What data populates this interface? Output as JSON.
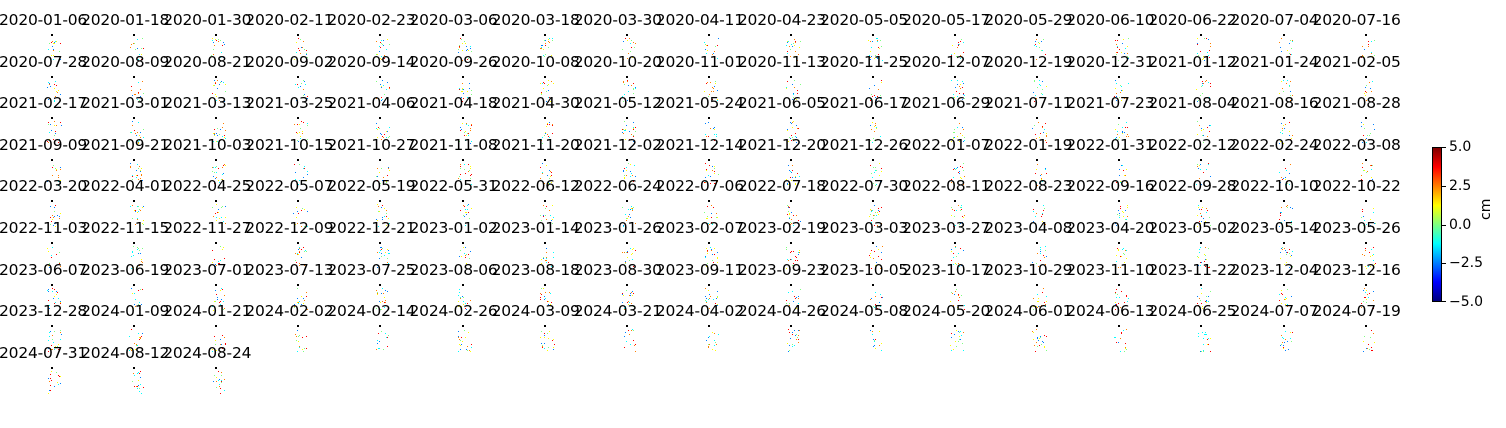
{
  "chart_data": {
    "type": "heatmap",
    "title": "",
    "panels": [
      "2020-01-06",
      "2020-01-18",
      "2020-01-30",
      "2020-02-11",
      "2020-02-23",
      "2020-03-06",
      "2020-03-18",
      "2020-03-30",
      "2020-04-11",
      "2020-04-23",
      "2020-05-05",
      "2020-05-17",
      "2020-05-29",
      "2020-06-10",
      "2020-06-22",
      "2020-07-04",
      "2020-07-16",
      "2020-07-28",
      "2020-08-09",
      "2020-08-21",
      "2020-09-02",
      "2020-09-14",
      "2020-09-26",
      "2020-10-08",
      "2020-10-20",
      "2020-11-01",
      "2020-11-13",
      "2020-11-25",
      "2020-12-07",
      "2020-12-19",
      "2020-12-31",
      "2021-01-12",
      "2021-01-24",
      "2021-02-05",
      "2021-02-17",
      "2021-03-01",
      "2021-03-13",
      "2021-03-25",
      "2021-04-06",
      "2021-04-18",
      "2021-04-30",
      "2021-05-12",
      "2021-05-24",
      "2021-06-05",
      "2021-06-17",
      "2021-06-29",
      "2021-07-11",
      "2021-07-23",
      "2021-08-04",
      "2021-08-16",
      "2021-08-28",
      "2021-09-09",
      "2021-09-21",
      "2021-10-03",
      "2021-10-15",
      "2021-10-27",
      "2021-11-08",
      "2021-11-20",
      "2021-12-02",
      "2021-12-14",
      "2021-12-20",
      "2021-12-26",
      "2022-01-07",
      "2022-01-19",
      "2022-01-31",
      "2022-02-12",
      "2022-02-24",
      "2022-03-08",
      "2022-03-20",
      "2022-04-01",
      "2022-04-25",
      "2022-05-07",
      "2022-05-19",
      "2022-05-31",
      "2022-06-12",
      "2022-06-24",
      "2022-07-06",
      "2022-07-18",
      "2022-07-30",
      "2022-08-11",
      "2022-08-23",
      "2022-09-16",
      "2022-09-28",
      "2022-10-10",
      "2022-10-22",
      "2022-11-03",
      "2022-11-15",
      "2022-11-27",
      "2022-12-09",
      "2022-12-21",
      "2023-01-02",
      "2023-01-14",
      "2023-01-26",
      "2023-02-07",
      "2023-02-19",
      "2023-03-03",
      "2023-03-27",
      "2023-04-08",
      "2023-04-20",
      "2023-05-02",
      "2023-05-14",
      "2023-05-26",
      "2023-06-07",
      "2023-06-19",
      "2023-07-01",
      "2023-07-13",
      "2023-07-25",
      "2023-08-06",
      "2023-08-18",
      "2023-08-30",
      "2023-09-11",
      "2023-09-23",
      "2023-10-05",
      "2023-10-17",
      "2023-10-29",
      "2023-11-10",
      "2023-11-22",
      "2023-12-04",
      "2023-12-16",
      "2023-12-28",
      "2024-01-09",
      "2024-01-21",
      "2024-02-02",
      "2024-02-14",
      "2024-02-26",
      "2024-03-09",
      "2024-03-21",
      "2024-04-02",
      "2024-04-26",
      "2024-05-08",
      "2024-05-20",
      "2024-06-01",
      "2024-06-13",
      "2024-06-25",
      "2024-07-07",
      "2024-07-19",
      "2024-07-31",
      "2024-08-12",
      "2024-08-24"
    ],
    "colorbar": {
      "label": "cm",
      "vmin": -5.0,
      "vmax": 5.0,
      "ticks": [
        -5.0,
        -2.5,
        0.0,
        2.5,
        5.0
      ],
      "tick_labels": [
        "−5.0",
        "−2.5",
        "0.0",
        "2.5",
        "5.0"
      ],
      "colormap": "jet",
      "colors": [
        "#00007f",
        "#0000ff",
        "#007fff",
        "#00ffff",
        "#7fff7f",
        "#ffff00",
        "#ff7f00",
        "#ff0000",
        "#7f0000"
      ]
    },
    "grid": false,
    "axes_visible": false
  }
}
